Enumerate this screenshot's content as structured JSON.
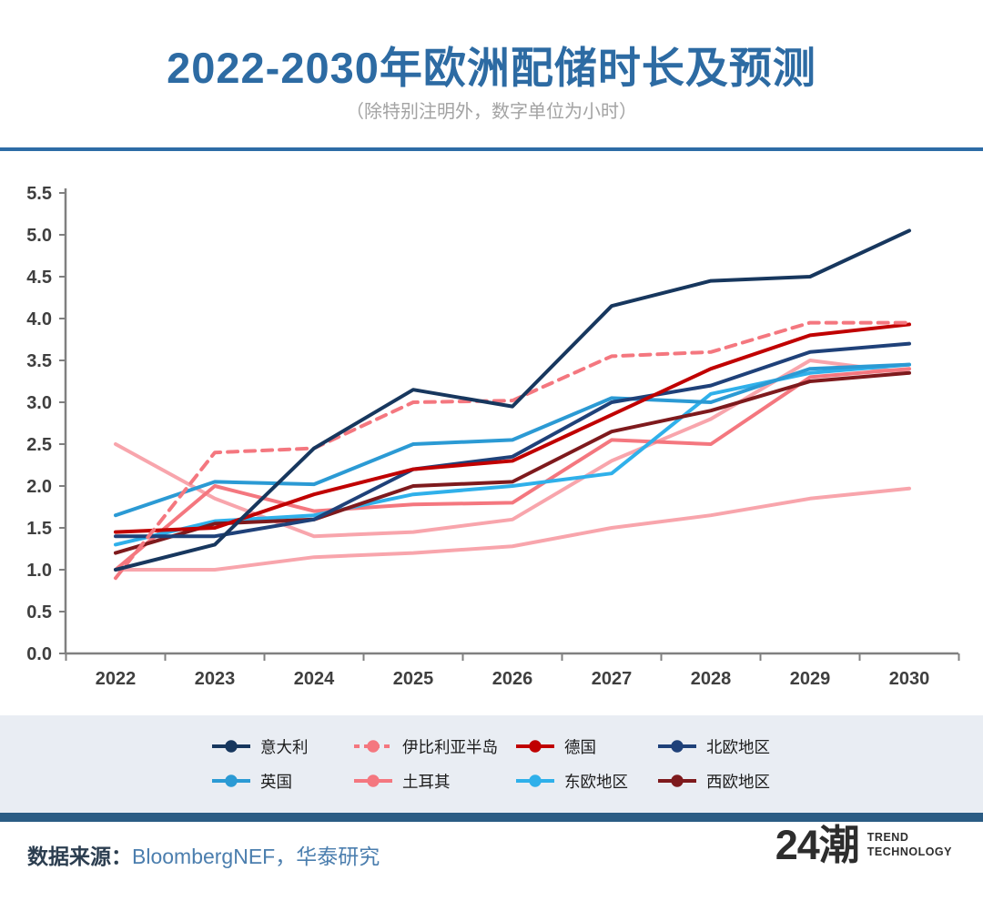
{
  "header": {
    "title": "2022-2030年欧洲配储时长及预测",
    "subtitle": "（除特别注明外，数字单位为小时）"
  },
  "chart_data": {
    "type": "line",
    "title": "2022-2030年欧洲配储时长及预测",
    "unit_note": "小时",
    "x": [
      2022,
      2023,
      2024,
      2025,
      2026,
      2027,
      2028,
      2029,
      2030
    ],
    "ylim": [
      0.0,
      5.5
    ],
    "ytick_step": 0.5,
    "grid": false,
    "legend_position": "bottom",
    "series": [
      {
        "name": "意大利",
        "color": "#17375e",
        "dashed": false,
        "in_legend": true,
        "values": [
          1.0,
          1.3,
          2.45,
          3.15,
          2.95,
          4.15,
          4.45,
          4.5,
          5.05
        ]
      },
      {
        "name": "伊比利亚半岛",
        "color": "#f4777f",
        "dashed": true,
        "in_legend": true,
        "values": [
          0.9,
          2.4,
          2.45,
          3.0,
          3.02,
          3.55,
          3.6,
          3.95,
          3.95
        ]
      },
      {
        "name": "德国",
        "color": "#c00000",
        "dashed": false,
        "in_legend": true,
        "values": [
          1.45,
          1.5,
          1.9,
          2.2,
          2.3,
          2.85,
          3.4,
          3.8,
          3.93
        ]
      },
      {
        "name": "北欧地区",
        "color": "#1f4179",
        "dashed": false,
        "in_legend": true,
        "values": [
          1.4,
          1.4,
          1.6,
          2.2,
          2.35,
          3.0,
          3.2,
          3.6,
          3.7
        ]
      },
      {
        "name": "英国",
        "color": "#2b9ad4",
        "dashed": false,
        "in_legend": true,
        "values": [
          1.65,
          2.05,
          2.02,
          2.5,
          2.55,
          3.05,
          3.0,
          3.4,
          3.45
        ]
      },
      {
        "name": "土耳其",
        "color": "#f4777f",
        "dashed": false,
        "in_legend": true,
        "values": [
          1.0,
          2.0,
          1.7,
          1.78,
          1.8,
          2.55,
          2.5,
          3.3,
          3.4
        ]
      },
      {
        "name": "东欧地区",
        "color": "#2fb0ea",
        "dashed": false,
        "in_legend": true,
        "values": [
          1.3,
          1.58,
          1.65,
          1.9,
          2.0,
          2.15,
          3.1,
          3.35,
          3.45
        ]
      },
      {
        "name": "西欧地区",
        "color": "#7e1a1d",
        "dashed": false,
        "in_legend": true,
        "values": [
          1.2,
          1.55,
          1.6,
          2.0,
          2.05,
          2.65,
          2.9,
          3.25,
          3.35
        ]
      },
      {
        "name": "",
        "color": "#f8a5ac",
        "dashed": false,
        "in_legend": false,
        "values": [
          2.5,
          1.85,
          1.4,
          1.45,
          1.6,
          2.3,
          2.8,
          3.5,
          3.35
        ]
      },
      {
        "name": "",
        "color": "#f8a5ac",
        "dashed": false,
        "in_legend": false,
        "values": [
          1.0,
          1.0,
          1.15,
          1.2,
          1.28,
          1.5,
          1.65,
          1.85,
          1.97
        ]
      }
    ]
  },
  "colors": {
    "title_blue": "#2d6ba3",
    "rule_blue": "#2d6ca6",
    "legend_band_bg": "#e9edf3",
    "bottom_band_blue": "#2b5c84",
    "axis_gray": "#808080"
  },
  "footer": {
    "source_label": "数据来源：",
    "source_text": "BloombergNEF，华泰研究",
    "logo_text": "24潮",
    "logo_sub1": "TREND",
    "logo_sub2": "TECHNOLOGY"
  }
}
